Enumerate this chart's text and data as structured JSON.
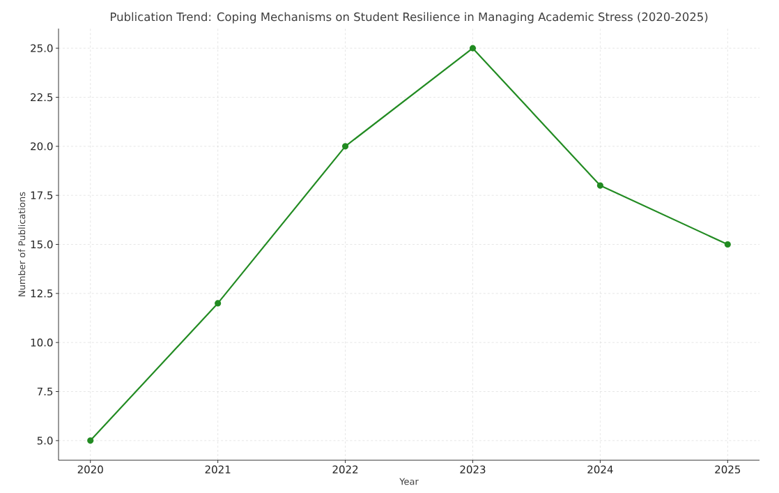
{
  "chart_data": {
    "type": "line",
    "title": "Publication Trend: Coping Mechanisms on Student Resilience in Managing Academic Stress (2020-2025)",
    "xlabel": "Year",
    "ylabel": "Number of Publications",
    "x": [
      2020,
      2021,
      2022,
      2023,
      2024,
      2025
    ],
    "series": [
      {
        "color": "#228b22",
        "values": [
          5,
          12,
          20,
          25,
          18,
          15
        ]
      }
    ],
    "xlim": [
      2019.75,
      2025.25
    ],
    "ylim": [
      4,
      26
    ],
    "xticks": [
      2020,
      2021,
      2022,
      2023,
      2024,
      2025
    ],
    "yticks": [
      {
        "value": 5,
        "label": "5.0"
      },
      {
        "value": 7.5,
        "label": "7.5"
      },
      {
        "value": 10,
        "label": "10.0"
      },
      {
        "value": 12.5,
        "label": "12.5"
      },
      {
        "value": 15,
        "label": "15.0"
      },
      {
        "value": 17.5,
        "label": "17.5"
      },
      {
        "value": 20,
        "label": "20.0"
      },
      {
        "value": 22.5,
        "label": "22.5"
      },
      {
        "value": 25,
        "label": "25.0"
      }
    ],
    "grid": true,
    "marker": "circle",
    "line_style": "solid"
  }
}
